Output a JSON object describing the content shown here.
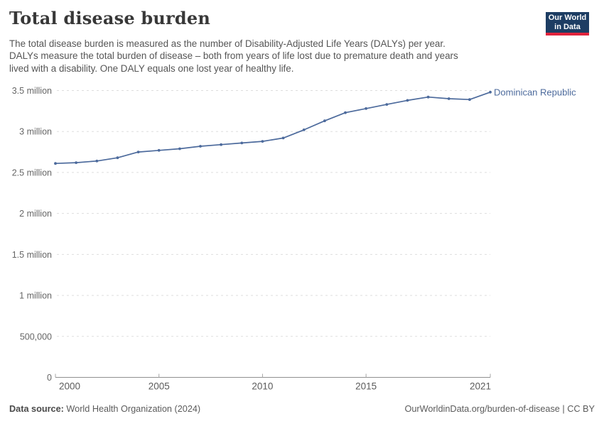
{
  "header": {
    "title": "Total disease burden",
    "subtitle_lines": [
      "The total disease burden is measured as the number of Disability-Adjusted Life Years (DALYs) per year.",
      "DALYs measure the total burden of disease – both from years of life lost due to premature death and years",
      "lived with a disability. One DALY equals one lost year of healthy life."
    ]
  },
  "logo": {
    "line1": "Our World",
    "line2": "in Data",
    "bg_color": "#1d3d63",
    "bar_color": "#e0233c"
  },
  "chart_data": {
    "type": "line",
    "title": "Total disease burden",
    "xlabel": "",
    "ylabel": "",
    "unit": "DALYs",
    "grid": "dashed horizontal",
    "legend_position": "right-of-line",
    "accent_color": "#4C6A9C",
    "x": [
      2000,
      2001,
      2002,
      2003,
      2004,
      2005,
      2006,
      2007,
      2008,
      2009,
      2010,
      2011,
      2012,
      2013,
      2014,
      2015,
      2016,
      2017,
      2018,
      2019,
      2020,
      2021
    ],
    "series": [
      {
        "name": "Dominican Republic",
        "values": [
          2610000,
          2620000,
          2640000,
          2680000,
          2750000,
          2770000,
          2790000,
          2820000,
          2840000,
          2860000,
          2880000,
          2920000,
          3020000,
          3130000,
          3230000,
          3280000,
          3330000,
          3380000,
          3420000,
          3400000,
          3390000,
          3480000
        ]
      }
    ],
    "ylim": [
      0,
      3500000
    ],
    "xlim": [
      2000,
      2021
    ],
    "y_ticks": [
      {
        "value": 0,
        "label": "0"
      },
      {
        "value": 500000,
        "label": "500,000"
      },
      {
        "value": 1000000,
        "label": "1 million"
      },
      {
        "value": 1500000,
        "label": "1.5 million"
      },
      {
        "value": 2000000,
        "label": "2 million"
      },
      {
        "value": 2500000,
        "label": "2.5 million"
      },
      {
        "value": 3000000,
        "label": "3 million"
      },
      {
        "value": 3500000,
        "label": "3.5 million"
      }
    ],
    "x_ticks": [
      2000,
      2005,
      2010,
      2015,
      2021
    ]
  },
  "footer": {
    "source_label": "Data source:",
    "source_value": "World Health Organization (2024)",
    "credit": "OurWorldinData.org/burden-of-disease | CC BY"
  }
}
